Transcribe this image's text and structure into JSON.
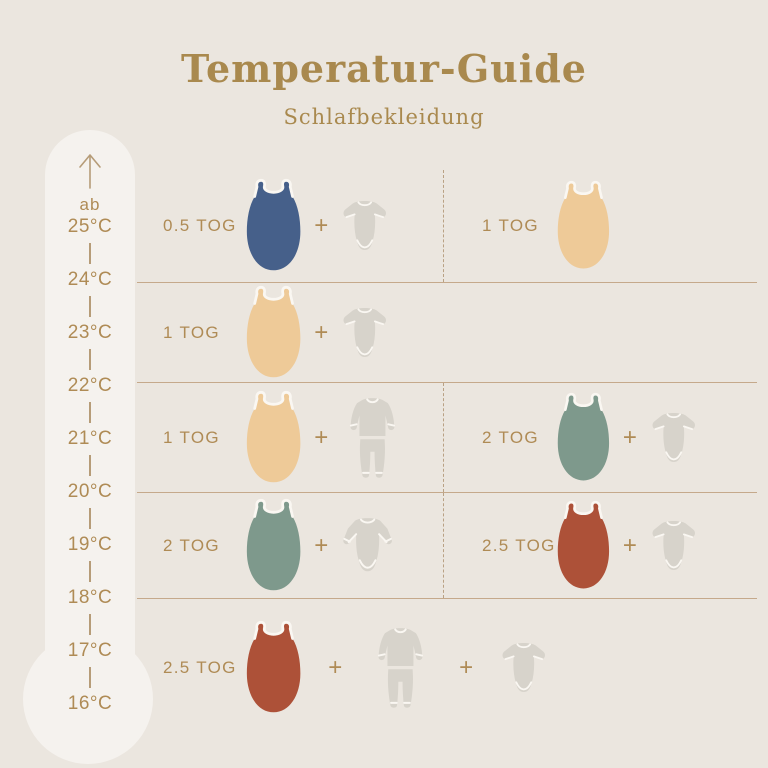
{
  "title": "Temperatur-Guide",
  "subtitle": "Schlafbekleidung",
  "thermometer": {
    "arrow_icon": "arrow-up-icon",
    "range_prefix": "ab",
    "temperatures": [
      "25°C",
      "24°C",
      "23°C",
      "22°C",
      "21°C",
      "20°C",
      "19°C",
      "18°C",
      "17°C",
      "16°C"
    ]
  },
  "plus_sign": "+",
  "rows": [
    {
      "left": {
        "tog": "0.5 TOG",
        "bag_color_name": "navy",
        "clothing": [
          "bodysuit-short"
        ]
      },
      "right": {
        "tog": "1 TOG",
        "bag_color_name": "cream",
        "clothing": []
      }
    },
    {
      "left": {
        "tog": "1 TOG",
        "bag_color_name": "cream",
        "clothing": [
          "bodysuit-short"
        ]
      },
      "right": null
    },
    {
      "left": {
        "tog": "1 TOG",
        "bag_color_name": "cream",
        "clothing": [
          "pajamas"
        ]
      },
      "right": {
        "tog": "2 TOG",
        "bag_color_name": "green",
        "clothing": [
          "bodysuit-short"
        ]
      }
    },
    {
      "left": {
        "tog": "2 TOG",
        "bag_color_name": "green",
        "clothing": [
          "bodysuit-long"
        ]
      },
      "right": {
        "tog": "2.5 TOG",
        "bag_color_name": "rust",
        "clothing": [
          "bodysuit-short"
        ]
      }
    },
    {
      "left": {
        "tog": "2.5 TOG",
        "bag_color_name": "rust",
        "clothing": [
          "pajamas",
          "bodysuit-short"
        ]
      },
      "right": null
    }
  ],
  "colors": {
    "background": "#ebe6df",
    "thermometer_fill": "#f5f2ee",
    "title_gold": "#a9894e",
    "label_gold": "#af8b55",
    "line_tan": "#c5a98b",
    "bag_navy": "#46608a",
    "bag_cream": "#eeca98",
    "bag_green": "#7e998c",
    "bag_rust": "#ad5138",
    "clothing_gray": "#d7d3cb"
  }
}
